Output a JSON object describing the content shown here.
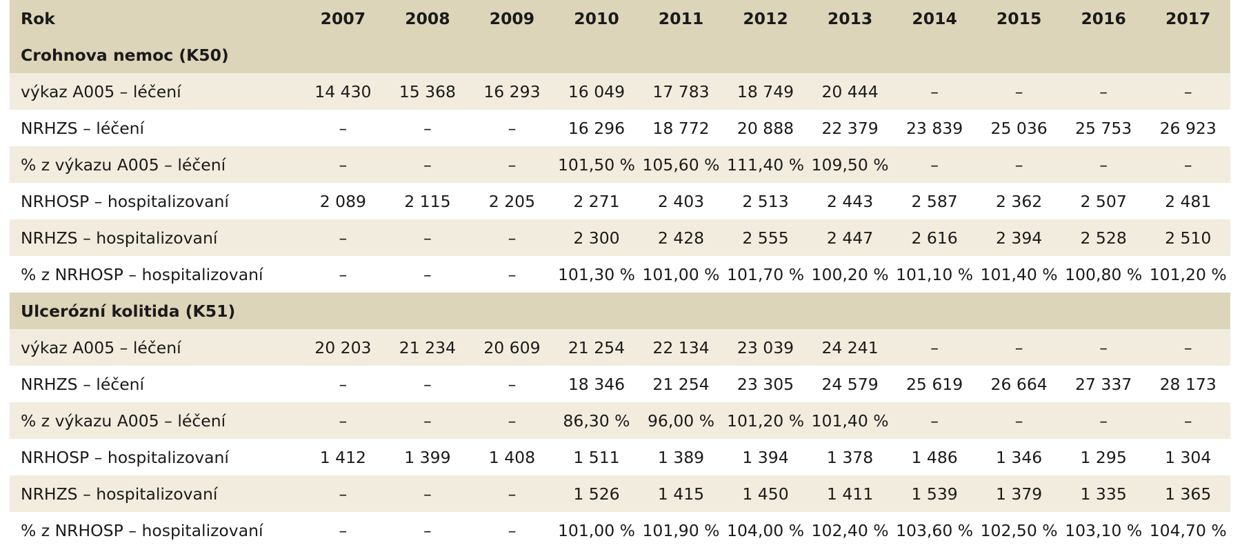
{
  "table": {
    "header": [
      "Rok",
      "2007",
      "2008",
      "2009",
      "2010",
      "2011",
      "2012",
      "2013",
      "2014",
      "2015",
      "2016",
      "2017"
    ],
    "sections": [
      {
        "title": "Crohnova nemoc (K50)",
        "rows": [
          {
            "label": "výkaz A005 – léčení",
            "values": [
              "14 430",
              "15 368",
              "16 293",
              "16 049",
              "17 783",
              "18 749",
              "20 444",
              "–",
              "–",
              "–",
              "–"
            ]
          },
          {
            "label": "NRHZS – léčení",
            "values": [
              "–",
              "–",
              "–",
              "16 296",
              "18 772",
              "20 888",
              "22 379",
              "23 839",
              "25 036",
              "25 753",
              "26 923"
            ]
          },
          {
            "label": "% z výkazu A005 – léčení",
            "values": [
              "–",
              "–",
              "–",
              "101,50 %",
              "105,60 %",
              "111,40 %",
              "109,50 %",
              "–",
              "–",
              "–",
              "–"
            ]
          },
          {
            "label": "NRHOSP – hospitalizovaní",
            "values": [
              "2 089",
              "2 115",
              "2 205",
              "2 271",
              "2 403",
              "2 513",
              "2 443",
              "2 587",
              "2 362",
              "2 507",
              "2 481"
            ]
          },
          {
            "label": "NRHZS – hospitalizovaní",
            "values": [
              "–",
              "–",
              "–",
              "2 300",
              "2 428",
              "2 555",
              "2 447",
              "2 616",
              "2 394",
              "2 528",
              "2 510"
            ]
          },
          {
            "label": "% z NRHOSP – hospitalizovaní",
            "values": [
              "–",
              "–",
              "–",
              "101,30 %",
              "101,00 %",
              "101,70 %",
              "100,20 %",
              "101,10 %",
              "101,40 %",
              "100,80 %",
              "101,20 %"
            ]
          }
        ]
      },
      {
        "title": "Ulcerózní kolitida (K51)",
        "rows": [
          {
            "label": "výkaz A005 – léčení",
            "values": [
              "20 203",
              "21 234",
              "20 609",
              "21 254",
              "22 134",
              "23 039",
              "24 241",
              "–",
              "–",
              "–",
              "–"
            ]
          },
          {
            "label": "NRHZS – léčení",
            "values": [
              "–",
              "–",
              "–",
              "18 346",
              "21 254",
              "23 305",
              "24 579",
              "25 619",
              "26 664",
              "27 337",
              "28 173"
            ]
          },
          {
            "label": "% z výkazu A005 – léčení",
            "values": [
              "–",
              "–",
              "–",
              "86,30 %",
              "96,00 %",
              "101,20 %",
              "101,40 %",
              "–",
              "–",
              "–",
              "–"
            ]
          },
          {
            "label": "NRHOSP – hospitalizovaní",
            "values": [
              "1 412",
              "1 399",
              "1 408",
              "1 511",
              "1 389",
              "1 394",
              "1 378",
              "1 486",
              "1 346",
              "1 295",
              "1 304"
            ]
          },
          {
            "label": "NRHZS – hospitalizovaní",
            "values": [
              "–",
              "–",
              "–",
              "1 526",
              "1 415",
              "1 450",
              "1 411",
              "1 539",
              "1 379",
              "1 335",
              "1 365"
            ]
          },
          {
            "label": "% z NRHOSP – hospitalizovaní",
            "values": [
              "–",
              "–",
              "–",
              "101,00 %",
              "101,90 %",
              "104,00 %",
              "102,40 %",
              "103,60 %",
              "102,50 %",
              "103,10 %",
              "104,70 %"
            ]
          }
        ]
      }
    ]
  },
  "colors": {
    "header_bg": "#ddd5b9",
    "shade_bg": "#f1ecdd",
    "plain_bg": "#ffffff",
    "text": "#1a1a1a"
  }
}
